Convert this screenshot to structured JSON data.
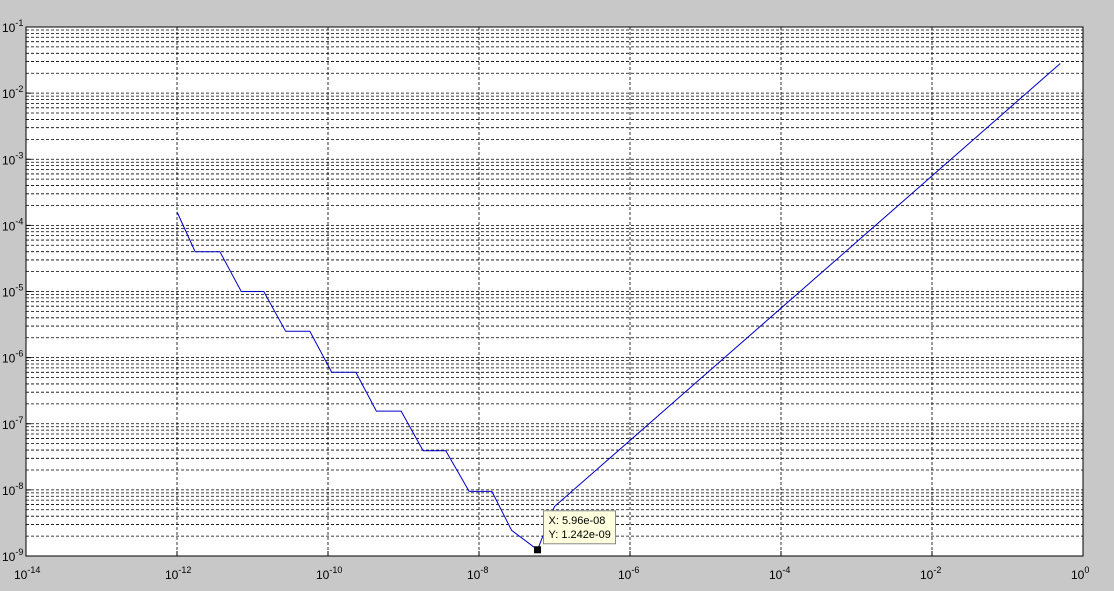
{
  "chart_data": {
    "type": "line",
    "xscale": "log",
    "yscale": "log",
    "xlim": [
      1e-14,
      1
    ],
    "ylim": [
      1e-09,
      0.1
    ],
    "xticks": [
      {
        "value": 1e-14,
        "label": "10",
        "exponent": "-14"
      },
      {
        "value": 1e-12,
        "label": "10",
        "exponent": "-12"
      },
      {
        "value": 1e-10,
        "label": "10",
        "exponent": "-10"
      },
      {
        "value": 1e-08,
        "label": "10",
        "exponent": "-8"
      },
      {
        "value": 1e-06,
        "label": "10",
        "exponent": "-6"
      },
      {
        "value": 0.0001,
        "label": "10",
        "exponent": "-4"
      },
      {
        "value": 0.01,
        "label": "10",
        "exponent": "-2"
      },
      {
        "value": 1,
        "label": "10",
        "exponent": "0"
      }
    ],
    "yticks": [
      {
        "value": 1e-09,
        "label": "10",
        "exponent": "-9"
      },
      {
        "value": 1e-08,
        "label": "10",
        "exponent": "-8"
      },
      {
        "value": 1e-07,
        "label": "10",
        "exponent": "-7"
      },
      {
        "value": 1e-06,
        "label": "10",
        "exponent": "-6"
      },
      {
        "value": 1e-05,
        "label": "10",
        "exponent": "-5"
      },
      {
        "value": 0.0001,
        "label": "10",
        "exponent": "-4"
      },
      {
        "value": 0.001,
        "label": "10",
        "exponent": "-3"
      },
      {
        "value": 0.01,
        "label": "10",
        "exponent": "-2"
      },
      {
        "value": 0.1,
        "label": "10",
        "exponent": "-1"
      }
    ],
    "grid": true,
    "yminorgrid": true,
    "series": [
      {
        "color": "#0000c8",
        "x": [
          1e-12,
          1.74e-12,
          3.7e-12,
          7.1e-12,
          1.41e-11,
          2.75e-11,
          5.75e-11,
          1.12e-10,
          2.34e-10,
          4.37e-10,
          9.3e-10,
          1.82e-09,
          3.63e-09,
          7.4e-09,
          1.48e-08,
          2.7e-08,
          5.96e-08,
          1e-07,
          0.5
        ],
        "values": [
          0.00016,
          4e-05,
          4e-05,
          1e-05,
          1e-05,
          2.5e-06,
          2.5e-06,
          6e-07,
          6e-07,
          1.55e-07,
          1.55e-07,
          3.9e-08,
          3.9e-08,
          9.5e-09,
          9.5e-09,
          2.45e-09,
          1.242e-09,
          5.6e-09,
          0.028
        ]
      }
    ],
    "datatip": {
      "x": 5.96e-08,
      "y": 1.242e-09,
      "x_text": "X: 5.96e-08",
      "y_text": "Y: 1.242e-09"
    }
  }
}
